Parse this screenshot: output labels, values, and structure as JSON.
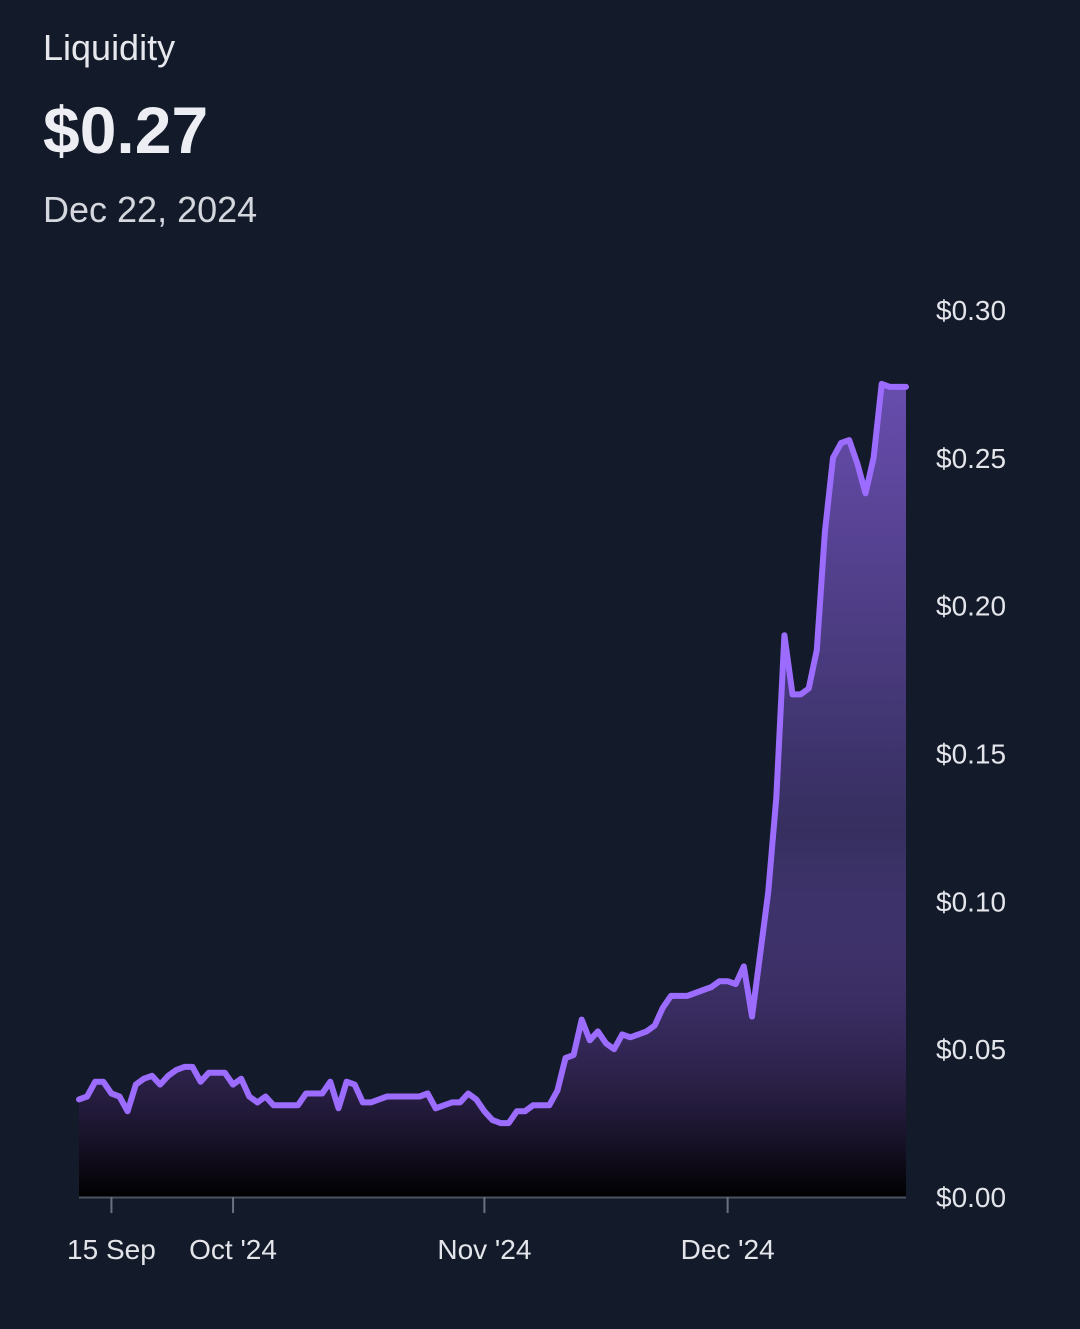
{
  "header": {
    "label": "Liquidity",
    "value": "$0.27",
    "date": "Dec 22, 2024"
  },
  "chart_data": {
    "type": "area",
    "title": "Liquidity",
    "series_color": "#9c6cff",
    "background_color": "#131a29",
    "grid": false,
    "y_axis": {
      "position": "right",
      "range": [
        0,
        0.3
      ],
      "ticks": [
        0,
        0.05,
        0.1,
        0.15,
        0.2,
        0.25,
        0.3
      ],
      "tick_labels": [
        "$0.00",
        "$0.05",
        "$0.10",
        "$0.15",
        "$0.20",
        "$0.25",
        "$0.30"
      ]
    },
    "x_axis": {
      "range": [
        "2024-09-11",
        "2024-12-22"
      ],
      "ticks": [
        "2024-09-15",
        "2024-09-30",
        "2024-10-31",
        "2024-11-30"
      ],
      "tick_labels": [
        "15 Sep",
        "Oct '24",
        "Nov '24",
        "Dec '24"
      ]
    },
    "x": [
      "2024-09-11",
      "2024-09-12",
      "2024-09-13",
      "2024-09-14",
      "2024-09-15",
      "2024-09-16",
      "2024-09-17",
      "2024-09-18",
      "2024-09-19",
      "2024-09-20",
      "2024-09-21",
      "2024-09-22",
      "2024-09-23",
      "2024-09-24",
      "2024-09-25",
      "2024-09-26",
      "2024-09-27",
      "2024-09-28",
      "2024-09-29",
      "2024-09-30",
      "2024-10-01",
      "2024-10-02",
      "2024-10-03",
      "2024-10-04",
      "2024-10-05",
      "2024-10-06",
      "2024-10-07",
      "2024-10-08",
      "2024-10-09",
      "2024-10-10",
      "2024-10-11",
      "2024-10-12",
      "2024-10-13",
      "2024-10-14",
      "2024-10-15",
      "2024-10-16",
      "2024-10-17",
      "2024-10-18",
      "2024-10-19",
      "2024-10-20",
      "2024-10-21",
      "2024-10-22",
      "2024-10-23",
      "2024-10-24",
      "2024-10-25",
      "2024-10-26",
      "2024-10-27",
      "2024-10-28",
      "2024-10-29",
      "2024-10-30",
      "2024-10-31",
      "2024-11-01",
      "2024-11-02",
      "2024-11-03",
      "2024-11-04",
      "2024-11-05",
      "2024-11-06",
      "2024-11-07",
      "2024-11-08",
      "2024-11-09",
      "2024-11-10",
      "2024-11-11",
      "2024-11-12",
      "2024-11-13",
      "2024-11-14",
      "2024-11-15",
      "2024-11-16",
      "2024-11-17",
      "2024-11-18",
      "2024-11-19",
      "2024-11-20",
      "2024-11-21",
      "2024-11-22",
      "2024-11-23",
      "2024-11-24",
      "2024-11-25",
      "2024-11-26",
      "2024-11-27",
      "2024-11-28",
      "2024-11-29",
      "2024-11-30",
      "2024-12-01",
      "2024-12-02",
      "2024-12-03",
      "2024-12-04",
      "2024-12-05",
      "2024-12-06",
      "2024-12-07",
      "2024-12-08",
      "2024-12-09",
      "2024-12-10",
      "2024-12-11",
      "2024-12-12",
      "2024-12-13",
      "2024-12-14",
      "2024-12-15",
      "2024-12-16",
      "2024-12-17",
      "2024-12-18",
      "2024-12-19",
      "2024-12-20",
      "2024-12-21",
      "2024-12-22"
    ],
    "series": [
      {
        "values": [
          0.033,
          0.034,
          0.039,
          0.039,
          0.035,
          0.034,
          0.029,
          0.038,
          0.04,
          0.041,
          0.038,
          0.041,
          0.043,
          0.044,
          0.044,
          0.039,
          0.042,
          0.042,
          0.042,
          0.038,
          0.04,
          0.034,
          0.032,
          0.034,
          0.031,
          0.031,
          0.031,
          0.031,
          0.035,
          0.035,
          0.035,
          0.039,
          0.03,
          0.039,
          0.038,
          0.032,
          0.032,
          0.033,
          0.034,
          0.034,
          0.034,
          0.034,
          0.034,
          0.035,
          0.03,
          0.031,
          0.032,
          0.032,
          0.035,
          0.033,
          0.029,
          0.026,
          0.025,
          0.025,
          0.029,
          0.029,
          0.031,
          0.031,
          0.031,
          0.036,
          0.047,
          0.048,
          0.06,
          0.053,
          0.056,
          0.052,
          0.05,
          0.055,
          0.054,
          0.055,
          0.056,
          0.058,
          0.064,
          0.068,
          0.068,
          0.068,
          0.069,
          0.07,
          0.071,
          0.073,
          0.073,
          0.072,
          0.078,
          0.061,
          0.082,
          0.103,
          0.135,
          0.19,
          0.17,
          0.17,
          0.172,
          0.185,
          0.225,
          0.25,
          0.255,
          0.256,
          0.248,
          0.238,
          0.25,
          0.275,
          0.274,
          0.274,
          0.274
        ]
      }
    ]
  }
}
